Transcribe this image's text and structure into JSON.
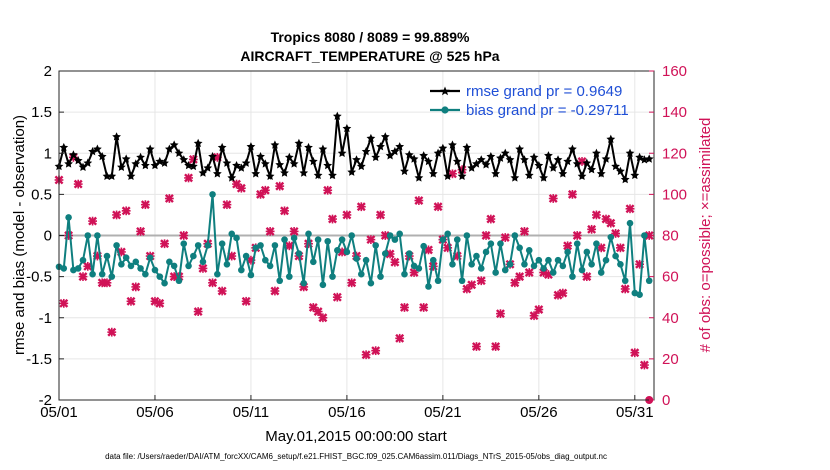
{
  "chart_data": {
    "type": "line",
    "title_line1": "Tropics 8080 / 8089 = 99.889%",
    "title_line2": "AIRCRAFT_TEMPERATURE @ 525 hPa",
    "xlabel": "May.01,2015 00:00:00 start",
    "ylabel_left": "rmse and bias (model - observation)",
    "ylabel_right": "# of obs: o=possible; ×=assimilated",
    "footer": "data file: /Users/raeder/DAI/ATM_forcXX/CAM6_setup/f.e21.FHIST_BGC.f09_025.CAM6assim.011/Diags_NTrS_2015-05/obs_diag_output.nc",
    "xlim": [
      1,
      32
    ],
    "ylim_left": [
      -2,
      2
    ],
    "ylim_right": [
      0,
      160
    ],
    "x_ticks": [
      1,
      6,
      11,
      16,
      21,
      26,
      31
    ],
    "x_tick_labels": [
      "05/01",
      "05/06",
      "05/11",
      "05/16",
      "05/21",
      "05/26",
      "05/31"
    ],
    "y_ticks_left": [
      -2,
      -1.5,
      -1,
      -0.5,
      0,
      0.5,
      1,
      1.5,
      2
    ],
    "y_tick_labels_left": [
      "-2",
      "-1.5",
      "-1",
      "-0.5",
      "0",
      "0.5",
      "1",
      "1.5",
      "2"
    ],
    "y_ticks_right": [
      0,
      20,
      40,
      60,
      80,
      100,
      120,
      140,
      160
    ],
    "y_tick_labels_right": [
      "0",
      "20",
      "40",
      "60",
      "80",
      "100",
      "120",
      "140",
      "160"
    ],
    "legend_rmse": "rmse grand pr = 0.9649",
    "legend_bias": "bias grand pr = -0.29711",
    "colors": {
      "rmse": "#000000",
      "bias": "#0f7f7f",
      "nobs": "#d01257",
      "zero_line": "#b0b0b0",
      "grid": "#e6e6e6"
    },
    "x": [
      1.0,
      1.25,
      1.5,
      1.75,
      2.0,
      2.25,
      2.5,
      2.75,
      3.0,
      3.25,
      3.5,
      3.75,
      4.0,
      4.25,
      4.5,
      4.75,
      5.0,
      5.25,
      5.5,
      5.75,
      6.0,
      6.25,
      6.5,
      6.75,
      7.0,
      7.25,
      7.5,
      7.75,
      8.0,
      8.25,
      8.5,
      8.75,
      9.0,
      9.25,
      9.5,
      9.75,
      10.0,
      10.25,
      10.5,
      10.75,
      11.0,
      11.25,
      11.5,
      11.75,
      12.0,
      12.25,
      12.5,
      12.75,
      13.0,
      13.25,
      13.5,
      13.75,
      14.0,
      14.25,
      14.5,
      14.75,
      15.0,
      15.25,
      15.5,
      15.75,
      16.0,
      16.25,
      16.5,
      16.75,
      17.0,
      17.25,
      17.5,
      17.75,
      18.0,
      18.25,
      18.5,
      18.75,
      19.0,
      19.25,
      19.5,
      19.75,
      20.0,
      20.25,
      20.5,
      20.75,
      21.0,
      21.25,
      21.5,
      21.75,
      22.0,
      22.25,
      22.5,
      22.75,
      23.0,
      23.25,
      23.5,
      23.75,
      24.0,
      24.25,
      24.5,
      24.75,
      25.0,
      25.25,
      25.5,
      25.75,
      26.0,
      26.25,
      26.5,
      26.75,
      27.0,
      27.25,
      27.5,
      27.75,
      28.0,
      28.25,
      28.5,
      28.75,
      29.0,
      29.25,
      29.5,
      29.75,
      30.0,
      30.25,
      30.5,
      30.75,
      31.0,
      31.25,
      31.5,
      31.75
    ],
    "series": [
      {
        "name": "rmse",
        "marker": "star",
        "values": [
          0.84,
          1.07,
          0.87,
          0.98,
          0.91,
          0.83,
          0.88,
          1.02,
          1.05,
          0.96,
          0.72,
          0.72,
          1.2,
          0.83,
          0.93,
          0.72,
          0.87,
          0.95,
          0.85,
          1.05,
          0.85,
          0.9,
          0.88,
          1.05,
          1.1,
          1.0,
          0.92,
          0.85,
          0.84,
          1.12,
          0.76,
          0.82,
          0.96,
          0.75,
          1.07,
          0.88,
          0.7,
          0.85,
          0.82,
          0.88,
          1.08,
          0.75,
          0.96,
          0.87,
          0.72,
          1.1,
          0.86,
          0.76,
          0.95,
          0.87,
          1.12,
          0.76,
          1.07,
          0.9,
          0.73,
          1.05,
          0.85,
          0.73,
          1.45,
          1.0,
          1.3,
          0.77,
          0.92,
          0.84,
          1.02,
          1.18,
          0.95,
          1.08,
          1.2,
          0.97,
          1.02,
          1.08,
          0.78,
          0.98,
          0.93,
          0.7,
          0.97,
          0.9,
          0.75,
          1.0,
          1.06,
          0.72,
          1.1,
          0.9,
          0.72,
          1.07,
          0.82,
          0.87,
          0.92,
          0.86,
          0.96,
          0.75,
          0.94,
          1.0,
          0.92,
          0.7,
          1.05,
          0.92,
          0.73,
          0.95,
          0.85,
          0.7,
          0.97,
          0.82,
          0.92,
          0.75,
          0.9,
          1.05,
          0.87,
          0.72,
          0.88,
          0.8,
          1.0,
          0.75,
          0.93,
          1.17,
          0.84,
          0.78,
          0.68,
          1.0,
          0.73,
          0.95,
          0.92,
          0.93
        ]
      },
      {
        "name": "bias",
        "marker": "circle",
        "values": [
          -0.38,
          -0.4,
          0.22,
          -0.42,
          -0.4,
          -0.3,
          0.0,
          -0.47,
          0.0,
          -0.47,
          -0.25,
          -0.5,
          -0.12,
          -0.35,
          -0.27,
          -0.37,
          -0.32,
          -0.4,
          -0.47,
          -0.27,
          -0.42,
          -0.5,
          -0.58,
          -0.32,
          -0.37,
          -0.55,
          -0.1,
          -0.37,
          -0.25,
          -0.12,
          -0.32,
          -0.12,
          0.5,
          -0.47,
          -0.1,
          -0.35,
          0.02,
          -0.03,
          -0.42,
          -0.25,
          -0.48,
          -0.15,
          -0.12,
          -0.3,
          -0.37,
          -0.12,
          -0.55,
          -0.05,
          -0.5,
          -0.03,
          -0.22,
          -0.58,
          0.02,
          -0.32,
          -0.05,
          -0.6,
          -0.07,
          -0.5,
          -0.18,
          -0.05,
          -0.2,
          0.0,
          -0.28,
          -0.47,
          -0.3,
          -0.58,
          -0.12,
          -0.5,
          -0.22,
          0.0,
          -0.05,
          0.02,
          -0.47,
          -0.22,
          -0.37,
          -0.4,
          -0.13,
          -0.62,
          -0.3,
          -0.55,
          -0.05,
          0.02,
          -0.35,
          -0.05,
          -0.55,
          0.0,
          -0.35,
          -0.25,
          -0.4,
          -0.2,
          -0.1,
          -0.45,
          -0.1,
          -0.42,
          -0.35,
          0.0,
          -0.15,
          -0.35,
          -0.18,
          -0.37,
          -0.3,
          -0.4,
          -0.3,
          -0.45,
          -0.3,
          -0.37,
          -0.2,
          -0.5,
          -0.1,
          -0.42,
          -0.2,
          -0.35,
          -0.1,
          -0.45,
          -0.3,
          -0.02,
          -0.25,
          -0.35,
          -0.55,
          0.15,
          -0.7,
          -0.72,
          0.0,
          -0.55
        ]
      },
      {
        "name": "nobs_assimilated",
        "marker": "x",
        "axis": "right",
        "values": [
          107,
          47,
          80,
          118,
          105,
          60,
          65,
          87,
          70,
          57,
          57,
          33,
          90,
          72,
          92,
          48,
          55,
          82,
          95,
          70,
          48,
          47,
          76,
          98,
          60,
          60,
          80,
          108,
          117,
          43,
          64,
          76,
          57,
          118,
          53,
          95,
          70,
          105,
          103,
          48,
          68,
          74,
          100,
          102,
          82,
          53,
          104,
          92,
          75,
          82,
          70,
          55,
          76,
          45,
          43,
          40,
          102,
          88,
          50,
          72,
          90,
          57,
          70,
          94,
          22,
          78,
          24,
          90,
          80,
          71,
          67,
          30,
          45,
          70,
          62,
          97,
          45,
          73,
          65,
          94,
          78,
          74,
          110,
          70,
          112,
          54,
          56,
          26,
          58,
          80,
          88,
          26,
          42,
          79,
          66,
          57,
          60,
          82,
          62,
          41,
          44,
          62,
          61,
          98,
          51,
          52,
          75,
          100,
          80,
          116,
          60,
          83,
          90,
          74,
          88,
          86,
          81,
          74,
          54,
          93,
          23,
          66,
          17,
          80
        ]
      }
    ],
    "special_points": [
      {
        "series": "nobs_assimilated",
        "x": 31.75,
        "y": 0,
        "marker": "circle"
      }
    ]
  }
}
